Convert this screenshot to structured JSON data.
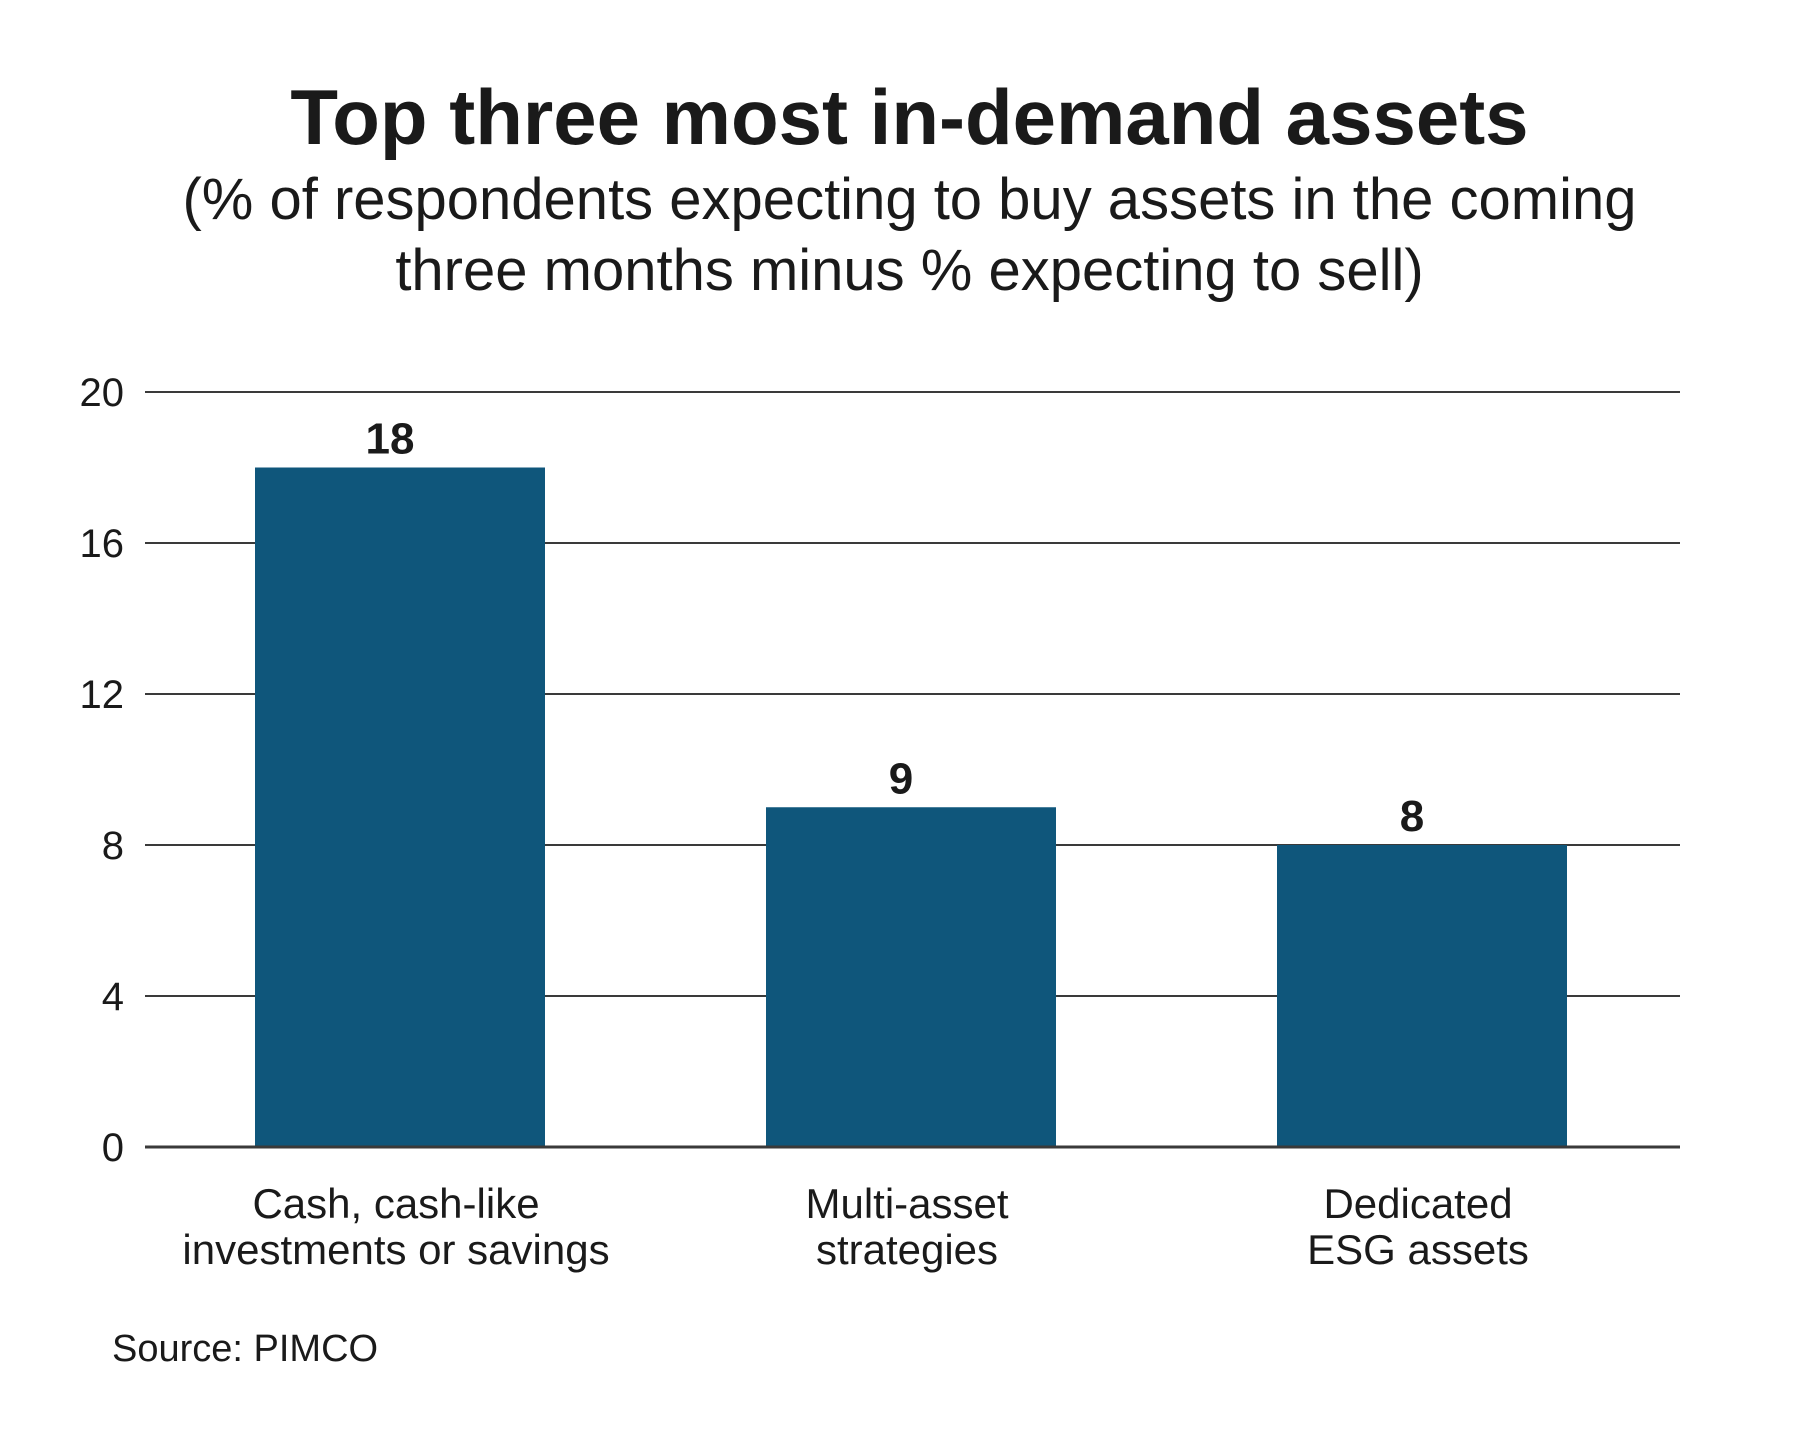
{
  "chart_data": {
    "type": "bar",
    "title": "Top three most in-demand assets",
    "subtitle_lines": [
      "(% of respondents expecting to buy assets in the coming",
      "three months minus % expecting to sell)"
    ],
    "categories": [
      [
        "Cash, cash-like",
        "investments or savings"
      ],
      [
        "Multi-asset",
        "strategies"
      ],
      [
        "Dedicated",
        "ESG assets"
      ]
    ],
    "values": [
      18,
      9,
      8
    ],
    "data_labels": [
      "18",
      "9",
      "8"
    ],
    "yticks": [
      0,
      4,
      8,
      12,
      16,
      20
    ],
    "ylim": [
      0,
      20
    ],
    "grid": true,
    "bar_color": "#0f567b",
    "source": "Source: PIMCO"
  }
}
